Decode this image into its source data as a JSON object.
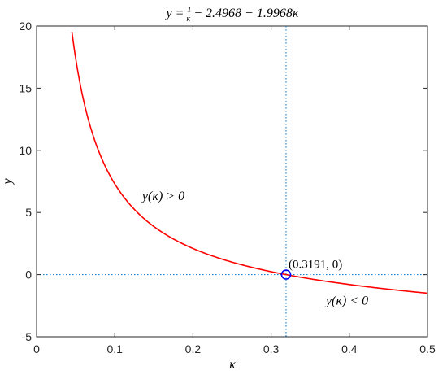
{
  "chart_data": {
    "type": "line",
    "title": "y = 1/κ − 2.4968 − 1.9968κ",
    "xlabel": "κ",
    "ylabel": "y",
    "xlim": [
      0,
      0.5
    ],
    "ylim": [
      -5,
      20
    ],
    "x_ticks": [
      "0",
      "0.1",
      "0.2",
      "0.3",
      "0.4",
      "0.5"
    ],
    "y_ticks": [
      "-5",
      "0",
      "5",
      "10",
      "15",
      "20"
    ],
    "grid": false,
    "series": [
      {
        "color": "#ff0000",
        "x": [
          0.0452,
          0.05,
          0.06,
          0.07,
          0.08,
          0.09,
          0.1,
          0.12,
          0.14,
          0.16,
          0.18,
          0.2,
          0.22,
          0.25,
          0.28,
          0.3191,
          0.35,
          0.4,
          0.45,
          0.5
        ],
        "y": [
          19.53,
          17.4,
          14.05,
          11.65,
          9.84,
          8.43,
          7.3,
          5.59,
          4.36,
          3.43,
          2.7,
          2.11,
          1.61,
          1.0,
          0.52,
          0.0,
          -0.34,
          -0.8,
          -1.18,
          -1.5
        ]
      }
    ],
    "marker": {
      "x": 0.3191,
      "y": 0,
      "label": "(0.3191, 0)",
      "color": "#0000ff"
    },
    "reference_lines": {
      "vertical_x": 0.3191,
      "horizontal_y": 0,
      "color": "#0072bd",
      "style": "dotted"
    },
    "annotations": [
      {
        "text": "y(κ) > 0",
        "x": 0.135,
        "y": 6.0
      },
      {
        "text": "y(κ) < 0",
        "x": 0.37,
        "y": -2.4
      }
    ]
  }
}
